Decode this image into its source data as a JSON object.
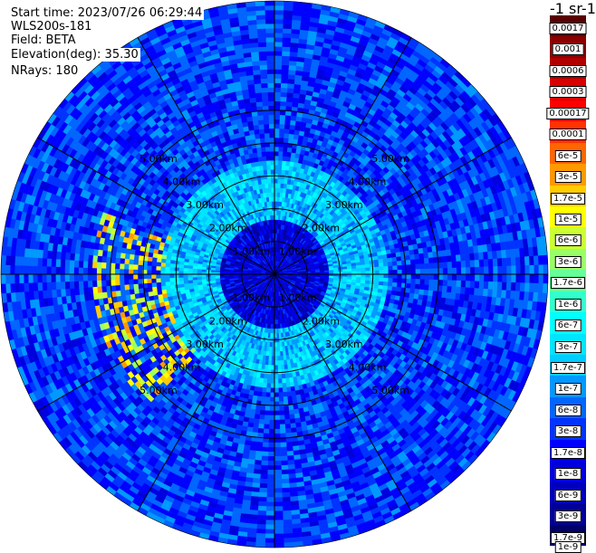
{
  "header": {
    "start_time": "Start time: 2023/07/26 06:29:44",
    "instrument": "WLS200s-181",
    "field": "Field: BETA",
    "elevation": "Elevation(deg): 35.30",
    "nrays": "NRays: 180"
  },
  "colorbar": {
    "unit": "-1 sr-1",
    "labels": [
      "0.0017",
      "0.001",
      "0.0006",
      "0.0003",
      "0.00017",
      "0.0001",
      "6e-5",
      "3e-5",
      "1.7e-5",
      "1e-5",
      "6e-6",
      "3e-6",
      "1.7e-6",
      "1e-6",
      "6e-7",
      "3e-7",
      "1.7e-7",
      "1e-7",
      "6e-8",
      "3e-8",
      "1.7e-8",
      "1e-8",
      "6e-9",
      "3e-9",
      "1.7e-9",
      "1e-9"
    ],
    "colors": [
      "#5a0000",
      "#8b0000",
      "#b00000",
      "#d80000",
      "#ff0000",
      "#ff3300",
      "#ff6600",
      "#ff9900",
      "#ffcc00",
      "#ffff00",
      "#ccff33",
      "#99ff66",
      "#66ff99",
      "#33ffcc",
      "#00ffff",
      "#00e5ff",
      "#00ccff",
      "#0099ff",
      "#0066ff",
      "#0033ff",
      "#0000ff",
      "#0000dd",
      "#0000bb",
      "#000099",
      "#000066"
    ]
  },
  "chart_data": {
    "type": "heatmap",
    "projection": "polar-ppi",
    "field": "BETA",
    "elevation_deg": 35.3,
    "nrays": 180,
    "max_range_km": 5.0,
    "range_rings_km": [
      1.0,
      2.0,
      3.0,
      4.0,
      5.0
    ],
    "ring_labels": [
      "1.00km",
      "2.00km",
      "3.00km",
      "4.00km",
      "5.00km"
    ],
    "spoke_angles_deg": [
      0,
      30,
      60,
      90,
      120,
      150,
      180,
      210,
      240,
      270,
      300,
      330
    ],
    "background_level": "3e-8",
    "near_field_level": "1e-8",
    "mid_ring_level": "1.7e-7",
    "aerosol_band": {
      "level": "1e-5",
      "azimuth_deg_range": [
        225,
        290
      ],
      "range_km": [
        2.0,
        3.3
      ]
    }
  }
}
